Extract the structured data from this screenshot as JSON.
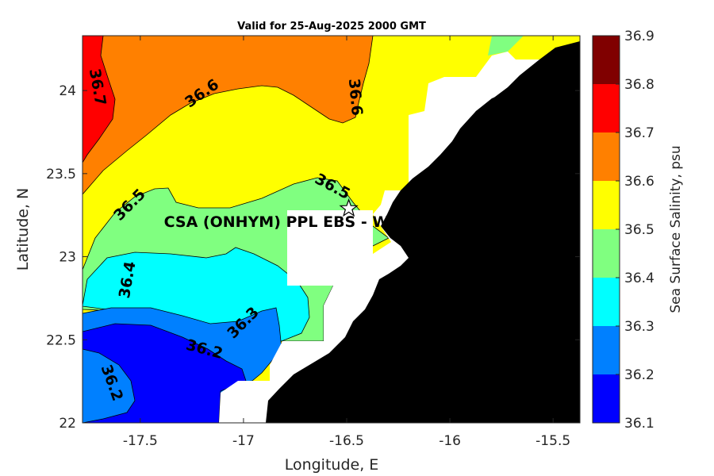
{
  "title": "Valid for 25-Aug-2025 2000 GMT",
  "chart_data": {
    "type": "contour-map",
    "title": "Valid for 25-Aug-2025 2000 GMT",
    "xlabel": "Longitude, E",
    "ylabel": "Latitude, N",
    "xlim": [
      -17.78,
      -15.37
    ],
    "ylim": [
      22.0,
      24.33
    ],
    "x_ticks": [
      "-17.5",
      "-17",
      "-16.5",
      "-16",
      "-15.5"
    ],
    "x_tick_values": [
      -17.5,
      -17.0,
      -16.5,
      -16.0,
      -15.5
    ],
    "y_ticks": [
      "22",
      "22.5",
      "23",
      "23.5",
      "24"
    ],
    "y_tick_values": [
      22.0,
      22.5,
      23.0,
      23.5,
      24.0
    ],
    "colorbar": {
      "label": "Sea Surface Salinity, psu",
      "ticks": [
        "36.1",
        "36.2",
        "36.3",
        "36.4",
        "36.5",
        "36.6",
        "36.7",
        "36.8",
        "36.9"
      ],
      "levels": [
        {
          "from": 36.1,
          "to": 36.2,
          "color": "#0000ff"
        },
        {
          "from": 36.2,
          "to": 36.3,
          "color": "#0080ff"
        },
        {
          "from": 36.3,
          "to": 36.4,
          "color": "#00ffff"
        },
        {
          "from": 36.4,
          "to": 36.5,
          "color": "#80ff80"
        },
        {
          "from": 36.5,
          "to": 36.6,
          "color": "#ffff00"
        },
        {
          "from": 36.6,
          "to": 36.7,
          "color": "#ff8000"
        },
        {
          "from": 36.7,
          "to": 36.8,
          "color": "#ff0000"
        },
        {
          "from": 36.8,
          "to": 36.9,
          "color": "#800000"
        }
      ]
    },
    "contour_labels": [
      {
        "text": "36.7",
        "lon": -17.71,
        "lat": 24.02,
        "angle": 80
      },
      {
        "text": "36.6",
        "lon": -17.2,
        "lat": 23.98,
        "angle": -35
      },
      {
        "text": "36.6",
        "lon": -16.46,
        "lat": 23.96,
        "angle": 85
      },
      {
        "text": "36.5",
        "lon": -16.57,
        "lat": 23.42,
        "angle": 28
      },
      {
        "text": "36.5",
        "lon": -17.55,
        "lat": 23.31,
        "angle": -45
      },
      {
        "text": "36.4",
        "lon": -17.56,
        "lat": 22.86,
        "angle": -80
      },
      {
        "text": "36.3",
        "lon": -17.0,
        "lat": 22.6,
        "angle": -45
      },
      {
        "text": "36.2",
        "lon": -17.19,
        "lat": 22.44,
        "angle": 15
      },
      {
        "text": "36.2",
        "lon": -17.64,
        "lat": 22.24,
        "angle": 70
      }
    ],
    "station": {
      "label": "CSA (ONHYM) PPL EBS  - We",
      "lon": -16.49,
      "lat": 23.29,
      "marker": "star"
    },
    "land_color": "#000000",
    "no_data_color": "#ffffff"
  }
}
